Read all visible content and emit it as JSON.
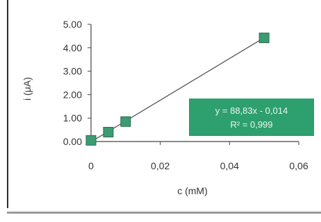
{
  "chart_data": {
    "type": "scatter",
    "xlabel": "c (mM)",
    "ylabel": "i (μA)",
    "xlim": [
      0,
      0.06
    ],
    "ylim": [
      0,
      5
    ],
    "x_tick_labels": [
      "0",
      "0,02",
      "0,04",
      "0,06"
    ],
    "y_tick_labels": [
      "0.00",
      "1.00",
      "2.00",
      "3.00",
      "4.00",
      "5.00"
    ],
    "series": [
      {
        "x": [
          0.0,
          0.005,
          0.01,
          0.05
        ],
        "y": [
          0.05,
          0.4,
          0.85,
          4.42
        ],
        "marker": "square",
        "color": "#3c9b73"
      }
    ],
    "trendline": {
      "type": "linear",
      "slope": 88.83,
      "intercept": -0.014,
      "x_range": [
        0,
        0.05
      ],
      "color": "#555555"
    },
    "annotation": {
      "equation": "y = 88,83x - 0,014",
      "r_squared": "R² = 0,999",
      "background": "#2e9f6e",
      "text_color": "#e9f7ef"
    },
    "grid": false,
    "legend": "none"
  }
}
